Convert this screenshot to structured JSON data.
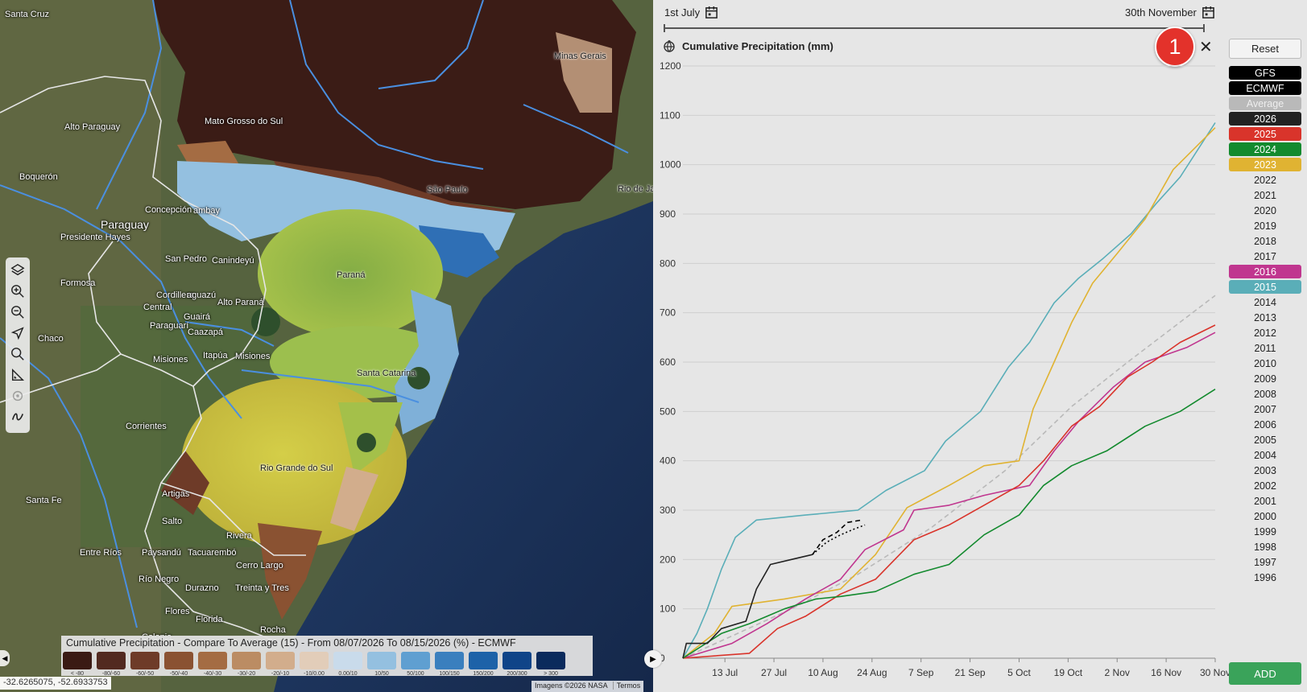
{
  "map": {
    "places": [
      {
        "id": "santa-cruz",
        "text": "Santa Cruz"
      },
      {
        "id": "alto-paraguay",
        "text": "Alto Paraguay"
      },
      {
        "id": "boqueron",
        "text": "Boquerón"
      },
      {
        "id": "paraguay",
        "text": "Paraguay"
      },
      {
        "id": "concepcion",
        "text": "Concepción"
      },
      {
        "id": "amambay",
        "text": "ambay"
      },
      {
        "id": "presidente-hayes",
        "text": "Presidente Hayes"
      },
      {
        "id": "san-pedro",
        "text": "San Pedro"
      },
      {
        "id": "canindeyu",
        "text": "Canindeyú"
      },
      {
        "id": "formosa",
        "text": "Formosa"
      },
      {
        "id": "cordillera",
        "text": "Cordillera"
      },
      {
        "id": "alto-parana-short",
        "text": "aguazú"
      },
      {
        "id": "central",
        "text": "Central"
      },
      {
        "id": "alto-parana",
        "text": "Alto Paraná"
      },
      {
        "id": "guaira",
        "text": "Guairá"
      },
      {
        "id": "paraguari",
        "text": "Paraguarí"
      },
      {
        "id": "caazapa",
        "text": "Caazapá"
      },
      {
        "id": "chaco",
        "text": "Chaco"
      },
      {
        "id": "misiones-py",
        "text": "Misiones"
      },
      {
        "id": "itapua",
        "text": "Itapúa"
      },
      {
        "id": "misiones-ar",
        "text": "Misiones"
      },
      {
        "id": "corrientes",
        "text": "Corrientes"
      },
      {
        "id": "santa-fe",
        "text": "Santa Fe"
      },
      {
        "id": "artigas",
        "text": "Artigas"
      },
      {
        "id": "salto",
        "text": "Salto"
      },
      {
        "id": "rivera",
        "text": "Rivera"
      },
      {
        "id": "entre-rios",
        "text": "Entre Ríos"
      },
      {
        "id": "paysandu",
        "text": "Paysandú"
      },
      {
        "id": "tacuarembo",
        "text": "Tacuarembó"
      },
      {
        "id": "cerro-largo",
        "text": "Cerro Largo"
      },
      {
        "id": "rio-negro",
        "text": "Río Negro"
      },
      {
        "id": "durazno",
        "text": "Durazno"
      },
      {
        "id": "treinta-y-tres",
        "text": "Treinta y Tres"
      },
      {
        "id": "flores",
        "text": "Flores"
      },
      {
        "id": "florida",
        "text": "Florida"
      },
      {
        "id": "rocha",
        "text": "Rocha"
      },
      {
        "id": "colonia",
        "text": "Colonia"
      },
      {
        "id": "mato-grosso-do-sul",
        "text": "Mato Grosso do Sul"
      },
      {
        "id": "minas-gerais",
        "text": "Minas Gerais"
      },
      {
        "id": "sao-paulo",
        "text": "São Paulo"
      },
      {
        "id": "rio-de-janeiro",
        "text": "Rio de Ja"
      },
      {
        "id": "parana",
        "text": "Paraná"
      },
      {
        "id": "santa-catarina",
        "text": "Santa Catarina"
      },
      {
        "id": "rio-grande-do-sul",
        "text": "Rio Grande do Sul"
      }
    ],
    "tools": [
      {
        "name": "layers-icon",
        "disabled": false
      },
      {
        "name": "zoom-in-icon",
        "disabled": false
      },
      {
        "name": "zoom-out-icon",
        "disabled": false
      },
      {
        "name": "navigate-icon",
        "disabled": false
      },
      {
        "name": "search-icon",
        "disabled": false
      },
      {
        "name": "measure-icon",
        "disabled": false
      },
      {
        "name": "locate-icon",
        "disabled": true
      },
      {
        "name": "draw-icon",
        "disabled": false
      }
    ],
    "legend": {
      "title": "Cumulative Precipitation - Compare To Average (15) - From 08/07/2026 To 08/15/2026 (%) - ECMWF",
      "bins": [
        {
          "label": "< -80",
          "color": "#3a1a14"
        },
        {
          "label": "-80/-60",
          "color": "#522a20"
        },
        {
          "label": "-60/-50",
          "color": "#6e3b28"
        },
        {
          "label": "-50/-40",
          "color": "#8a5232"
        },
        {
          "label": "-40/-30",
          "color": "#a46c43"
        },
        {
          "label": "-30/-20",
          "color": "#bb8c63"
        },
        {
          "label": "-20/-10",
          "color": "#d2ad8c"
        },
        {
          "label": "-10/0.00",
          "color": "#e2cdb9"
        },
        {
          "label": "0.00/10",
          "color": "#c9dbeb"
        },
        {
          "label": "10/50",
          "color": "#94c0e0"
        },
        {
          "label": "50/100",
          "color": "#5f9fd1"
        },
        {
          "label": "100/150",
          "color": "#3a7fbe"
        },
        {
          "label": "150/200",
          "color": "#1d62a8"
        },
        {
          "label": "200/300",
          "color": "#0f4488"
        },
        {
          "label": "> 300",
          "color": "#0a2a5c"
        }
      ]
    },
    "coords": "-32.6265075, -52.6933753",
    "attribution": [
      "Imagens ©2026 NASA",
      "Termos"
    ]
  },
  "panel": {
    "start_date": "1st July",
    "end_date": "30th November",
    "badge": "1",
    "reset_label": "Reset",
    "add_label": "ADD",
    "close_glyph": "✕",
    "colors": {
      "gfs": "#000000",
      "ecmwf": "#000000",
      "average": "#b9b9b9",
      "y2026": "#222222",
      "y2025": "#d9342b",
      "y2024": "#138a2e",
      "y2023": "#e0b332",
      "y2016": "#c0368f",
      "y2015": "#5aaeb8"
    },
    "legend_items": [
      {
        "label": "GFS",
        "bg": "#000000",
        "fg": "#ffffff"
      },
      {
        "label": "ECMWF",
        "bg": "#000000",
        "fg": "#ffffff"
      },
      {
        "label": "Average",
        "bg": "#b9b9b9",
        "fg": "#eeeeee"
      },
      {
        "label": "2026",
        "bg": "#222222",
        "fg": "#ffffff"
      },
      {
        "label": "2025",
        "bg": "#d9342b",
        "fg": "#ffffff"
      },
      {
        "label": "2024",
        "bg": "#138a2e",
        "fg": "#ffffff"
      },
      {
        "label": "2023",
        "bg": "#e0b332",
        "fg": "#ffffff"
      },
      {
        "label": "2022",
        "bg": "",
        "fg": "#222222"
      },
      {
        "label": "2021",
        "bg": "",
        "fg": "#222222"
      },
      {
        "label": "2020",
        "bg": "",
        "fg": "#222222"
      },
      {
        "label": "2019",
        "bg": "",
        "fg": "#222222"
      },
      {
        "label": "2018",
        "bg": "",
        "fg": "#222222"
      },
      {
        "label": "2017",
        "bg": "",
        "fg": "#222222"
      },
      {
        "label": "2016",
        "bg": "#c0368f",
        "fg": "#ffffff"
      },
      {
        "label": "2015",
        "bg": "#5aaeb8",
        "fg": "#ffffff"
      },
      {
        "label": "2014",
        "bg": "",
        "fg": "#222222"
      },
      {
        "label": "2013",
        "bg": "",
        "fg": "#222222"
      },
      {
        "label": "2012",
        "bg": "",
        "fg": "#222222"
      },
      {
        "label": "2011",
        "bg": "",
        "fg": "#222222"
      },
      {
        "label": "2010",
        "bg": "",
        "fg": "#222222"
      },
      {
        "label": "2009",
        "bg": "",
        "fg": "#222222"
      },
      {
        "label": "2008",
        "bg": "",
        "fg": "#222222"
      },
      {
        "label": "2007",
        "bg": "",
        "fg": "#222222"
      },
      {
        "label": "2006",
        "bg": "",
        "fg": "#222222"
      },
      {
        "label": "2005",
        "bg": "",
        "fg": "#222222"
      },
      {
        "label": "2004",
        "bg": "",
        "fg": "#222222"
      },
      {
        "label": "2003",
        "bg": "",
        "fg": "#222222"
      },
      {
        "label": "2002",
        "bg": "",
        "fg": "#222222"
      },
      {
        "label": "2001",
        "bg": "",
        "fg": "#222222"
      },
      {
        "label": "2000",
        "bg": "",
        "fg": "#222222"
      },
      {
        "label": "1999",
        "bg": "",
        "fg": "#222222"
      },
      {
        "label": "1998",
        "bg": "",
        "fg": "#222222"
      },
      {
        "label": "1997",
        "bg": "",
        "fg": "#222222"
      },
      {
        "label": "1996",
        "bg": "",
        "fg": "#222222"
      }
    ]
  },
  "chart_data": {
    "type": "line",
    "title": "Cumulative Precipitation (mm)",
    "ylim": [
      0,
      1200
    ],
    "yticks": [
      0,
      100,
      200,
      300,
      400,
      500,
      600,
      700,
      800,
      900,
      1000,
      1100,
      1200
    ],
    "xlim": [
      "2026-07-01",
      "2026-11-30"
    ],
    "xticks": [
      {
        "date": "2026-07-13",
        "label": "13 Jul"
      },
      {
        "date": "2026-07-27",
        "label": "27 Jul"
      },
      {
        "date": "2026-08-10",
        "label": "10 Aug"
      },
      {
        "date": "2026-08-24",
        "label": "24 Aug"
      },
      {
        "date": "2026-09-07",
        "label": "7 Sep"
      },
      {
        "date": "2026-09-21",
        "label": "21 Sep"
      },
      {
        "date": "2026-10-05",
        "label": "5 Oct"
      },
      {
        "date": "2026-10-19",
        "label": "19 Oct"
      },
      {
        "date": "2026-11-02",
        "label": "2 Nov"
      },
      {
        "date": "2026-11-16",
        "label": "16 Nov"
      },
      {
        "date": "2026-11-30",
        "label": "30 Nov"
      }
    ],
    "grid": true,
    "series": [
      {
        "name": "Average",
        "style": "dashed",
        "color": "#b9b9b9",
        "points": [
          [
            "2026-07-01",
            0
          ],
          [
            "2026-07-15",
            45
          ],
          [
            "2026-08-01",
            100
          ],
          [
            "2026-08-20",
            170
          ],
          [
            "2026-09-10",
            265
          ],
          [
            "2026-10-01",
            380
          ],
          [
            "2026-10-20",
            510
          ],
          [
            "2026-11-05",
            600
          ],
          [
            "2026-11-30",
            735
          ]
        ]
      },
      {
        "name": "2015",
        "style": "solid",
        "color": "#5aaeb8",
        "points": [
          [
            "2026-07-01",
            0
          ],
          [
            "2026-07-05",
            50
          ],
          [
            "2026-07-08",
            100
          ],
          [
            "2026-07-12",
            180
          ],
          [
            "2026-07-16",
            245
          ],
          [
            "2026-07-22",
            280
          ],
          [
            "2026-08-05",
            290
          ],
          [
            "2026-08-20",
            300
          ],
          [
            "2026-08-28",
            340
          ],
          [
            "2026-09-08",
            380
          ],
          [
            "2026-09-14",
            440
          ],
          [
            "2026-09-24",
            500
          ],
          [
            "2026-10-02",
            590
          ],
          [
            "2026-10-08",
            640
          ],
          [
            "2026-10-15",
            720
          ],
          [
            "2026-10-22",
            770
          ],
          [
            "2026-10-29",
            810
          ],
          [
            "2026-11-06",
            860
          ],
          [
            "2026-11-13",
            920
          ],
          [
            "2026-11-20",
            975
          ],
          [
            "2026-11-30",
            1085
          ]
        ]
      },
      {
        "name": "2023",
        "style": "solid",
        "color": "#e0b332",
        "points": [
          [
            "2026-07-01",
            0
          ],
          [
            "2026-07-10",
            50
          ],
          [
            "2026-07-15",
            105
          ],
          [
            "2026-07-30",
            120
          ],
          [
            "2026-08-15",
            140
          ],
          [
            "2026-08-25",
            210
          ],
          [
            "2026-09-03",
            305
          ],
          [
            "2026-09-15",
            350
          ],
          [
            "2026-09-25",
            390
          ],
          [
            "2026-10-05",
            400
          ],
          [
            "2026-10-09",
            505
          ],
          [
            "2026-10-15",
            600
          ],
          [
            "2026-10-20",
            680
          ],
          [
            "2026-10-26",
            760
          ],
          [
            "2026-11-02",
            820
          ],
          [
            "2026-11-10",
            890
          ],
          [
            "2026-11-18",
            990
          ],
          [
            "2026-11-30",
            1075
          ]
        ]
      },
      {
        "name": "2016",
        "style": "solid",
        "color": "#c0368f",
        "points": [
          [
            "2026-07-01",
            0
          ],
          [
            "2026-07-15",
            30
          ],
          [
            "2026-07-25",
            70
          ],
          [
            "2026-08-05",
            120
          ],
          [
            "2026-08-15",
            160
          ],
          [
            "2026-08-22",
            220
          ],
          [
            "2026-09-02",
            260
          ],
          [
            "2026-09-05",
            300
          ],
          [
            "2026-09-15",
            310
          ],
          [
            "2026-09-25",
            330
          ],
          [
            "2026-10-08",
            350
          ],
          [
            "2026-10-15",
            420
          ],
          [
            "2026-10-22",
            480
          ],
          [
            "2026-11-01",
            550
          ],
          [
            "2026-11-10",
            600
          ],
          [
            "2026-11-22",
            630
          ],
          [
            "2026-11-30",
            660
          ]
        ]
      },
      {
        "name": "2025",
        "style": "solid",
        "color": "#d9342b",
        "points": [
          [
            "2026-07-01",
            0
          ],
          [
            "2026-07-20",
            10
          ],
          [
            "2026-07-28",
            60
          ],
          [
            "2026-08-05",
            85
          ],
          [
            "2026-08-15",
            130
          ],
          [
            "2026-08-25",
            160
          ],
          [
            "2026-09-05",
            240
          ],
          [
            "2026-09-15",
            270
          ],
          [
            "2026-09-25",
            310
          ],
          [
            "2026-10-05",
            350
          ],
          [
            "2026-10-12",
            400
          ],
          [
            "2026-10-20",
            470
          ],
          [
            "2026-10-28",
            510
          ],
          [
            "2026-11-05",
            570
          ],
          [
            "2026-11-12",
            600
          ],
          [
            "2026-11-20",
            640
          ],
          [
            "2026-11-30",
            675
          ]
        ]
      },
      {
        "name": "2024",
        "style": "solid",
        "color": "#138a2e",
        "points": [
          [
            "2026-07-01",
            0
          ],
          [
            "2026-07-12",
            50
          ],
          [
            "2026-07-20",
            70
          ],
          [
            "2026-07-30",
            100
          ],
          [
            "2026-08-08",
            120
          ],
          [
            "2026-08-15",
            125
          ],
          [
            "2026-08-25",
            135
          ],
          [
            "2026-09-05",
            170
          ],
          [
            "2026-09-15",
            190
          ],
          [
            "2026-09-25",
            250
          ],
          [
            "2026-10-05",
            290
          ],
          [
            "2026-10-12",
            350
          ],
          [
            "2026-10-20",
            390
          ],
          [
            "2026-10-30",
            420
          ],
          [
            "2026-11-10",
            470
          ],
          [
            "2026-11-20",
            500
          ],
          [
            "2026-11-30",
            545
          ]
        ]
      },
      {
        "name": "2026",
        "style": "solid",
        "color": "#222222",
        "points": [
          [
            "2026-07-01",
            0
          ],
          [
            "2026-07-02",
            30
          ],
          [
            "2026-07-08",
            30
          ],
          [
            "2026-07-12",
            60
          ],
          [
            "2026-07-19",
            75
          ],
          [
            "2026-07-22",
            140
          ],
          [
            "2026-07-26",
            190
          ],
          [
            "2026-08-01",
            200
          ],
          [
            "2026-08-07",
            210
          ]
        ]
      },
      {
        "name": "GFS",
        "style": "dashed",
        "color": "#000000",
        "points": [
          [
            "2026-08-07",
            210
          ],
          [
            "2026-08-10",
            240
          ],
          [
            "2026-08-14",
            255
          ],
          [
            "2026-08-17",
            275
          ],
          [
            "2026-08-21",
            280
          ]
        ]
      },
      {
        "name": "ECMWF",
        "style": "dotted",
        "color": "#000000",
        "points": [
          [
            "2026-08-07",
            210
          ],
          [
            "2026-08-11",
            235
          ],
          [
            "2026-08-15",
            250
          ],
          [
            "2026-08-19",
            262
          ],
          [
            "2026-08-22",
            270
          ]
        ]
      }
    ]
  }
}
